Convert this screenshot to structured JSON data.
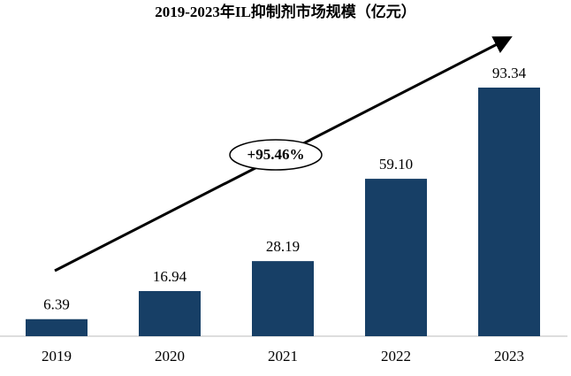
{
  "chart_data": {
    "type": "bar",
    "title": "2019-2023年IL抑制剂市场规模（亿元）",
    "categories": [
      "2019",
      "2020",
      "2021",
      "2022",
      "2023"
    ],
    "values": [
      6.39,
      16.94,
      28.19,
      59.1,
      93.34
    ],
    "value_labels": [
      "6.39",
      "16.94",
      "28.19",
      "59.10",
      "93.34"
    ],
    "color": "#173f66",
    "annotation": "+95.46%"
  }
}
